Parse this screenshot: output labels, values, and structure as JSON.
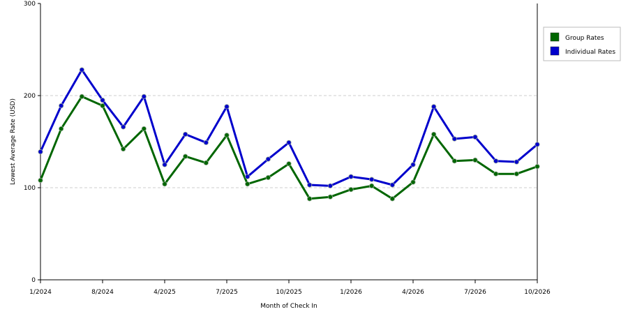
{
  "chart_data": {
    "type": "line",
    "xlabel": "Month of Check In",
    "ylabel": "Lowest Average Rate (USD)",
    "ylim": [
      0,
      300
    ],
    "yticks": [
      "0",
      "100",
      "200",
      "300"
    ],
    "xticks": [
      "1/2024",
      "8/2024",
      "4/2025",
      "7/2025",
      "10/2025",
      "1/2026",
      "4/2026",
      "7/2026",
      "10/2026"
    ],
    "xtick_index": [
      0,
      3,
      6,
      9,
      12,
      15,
      18,
      21,
      24
    ],
    "grid": "horizontal-dashed",
    "legend_position": "right",
    "n_points": 25,
    "series": [
      {
        "name": "Group Rates",
        "color": "#006600",
        "values": [
          108,
          164,
          199,
          189,
          142,
          164,
          104,
          134,
          127,
          157,
          104,
          111,
          126,
          88,
          90,
          98,
          102,
          88,
          106,
          158,
          129,
          130,
          115,
          115,
          123
        ]
      },
      {
        "name": "Individual Rates",
        "color": "#0000cc",
        "values": [
          139,
          189,
          228,
          195,
          166,
          199,
          125,
          158,
          149,
          188,
          112,
          131,
          149,
          103,
          102,
          112,
          109,
          103,
          125,
          188,
          153,
          155,
          129,
          128,
          147
        ]
      }
    ]
  }
}
